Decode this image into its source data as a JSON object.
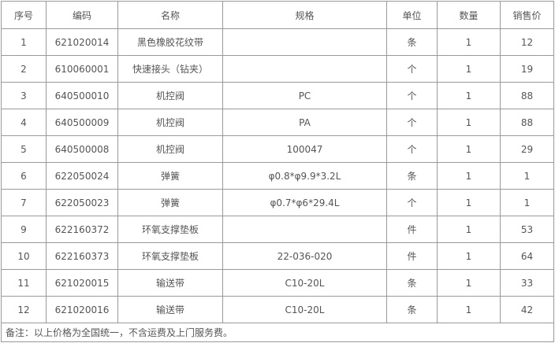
{
  "headers": [
    "序号",
    "编码",
    "名称",
    "规格",
    "单位",
    "数量",
    "销售价"
  ],
  "rows": [
    [
      "1",
      "621020014",
      "黑色橡胶花纹带",
      "",
      "条",
      "1",
      "12"
    ],
    [
      "2",
      "610060001",
      "快速接头（钻夹）",
      "",
      "个",
      "1",
      "19"
    ],
    [
      "3",
      "640500010",
      "机控阀",
      "PC",
      "个",
      "1",
      "88"
    ],
    [
      "4",
      "640500009",
      "机控阀",
      "PA",
      "个",
      "1",
      "88"
    ],
    [
      "5",
      "640500008",
      "机控阀",
      "100047",
      "个",
      "1",
      "29"
    ],
    [
      "6",
      "622050024",
      "弹簧",
      "φ0.8*φ9.9*3.2L",
      "条",
      "1",
      "1"
    ],
    [
      "7",
      "622050023",
      "弹簧",
      "φ0.7*φ6*29.4L",
      "个",
      "1",
      "1"
    ],
    [
      "9",
      "622160372",
      "环氧支撑垫板",
      "",
      "件",
      "1",
      "53"
    ],
    [
      "10",
      "622160373",
      "环氧支撑垫板",
      "22-036-020",
      "件",
      "1",
      "64"
    ],
    [
      "11",
      "621020015",
      "输送带",
      "C10-20L",
      "条",
      "1",
      "33"
    ],
    [
      "12",
      "621020016",
      "输送带",
      "C10-20L",
      "条",
      "1",
      "42"
    ]
  ],
  "note": "备注：以上价格为全国统一，不含运费及上门服务费。"
}
